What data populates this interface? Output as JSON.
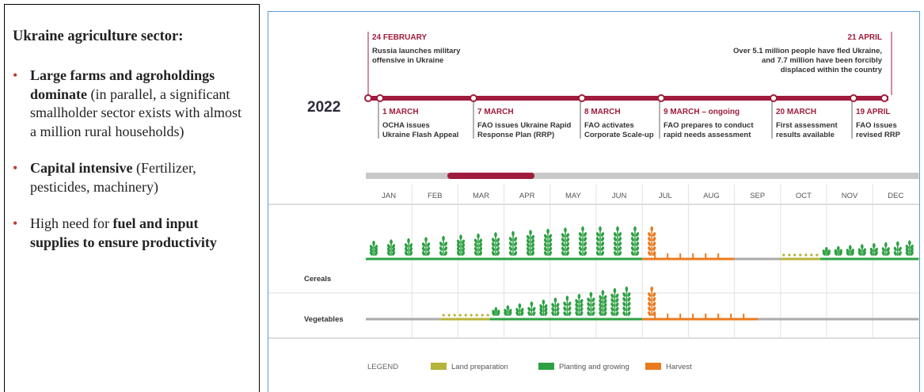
{
  "sidebar": {
    "title": "Ukraine agriculture sector:",
    "bullets": [
      [
        {
          "text": "Large farms and agroholdings dominate",
          "bold": true
        },
        {
          "text": " (in parallel, a significant smallholder sector exists with almost a million rural households)",
          "bold": false
        }
      ],
      [
        {
          "text": "Capital intensive",
          "bold": true
        },
        {
          "text": " (Fertilizer, pesticides, machinery)",
          "bold": false
        }
      ],
      [
        {
          "text": "High need for ",
          "bold": false
        },
        {
          "text": "fuel and input supplies to ensure productivity",
          "bold": true
        }
      ]
    ]
  },
  "timeline": {
    "year": "2022",
    "top_events": [
      {
        "date": "24 FEBRUARY",
        "lines": [
          "Russia launches military",
          "offensive in Ukraine"
        ]
      },
      {
        "date": "21 APRIL",
        "lines": [
          "Over 5.1 million people have fled Ukraine,",
          "and 7.7 million have been forcibly",
          "displaced within the country"
        ]
      }
    ],
    "bottom_events": [
      {
        "date": "1 MARCH",
        "lines": [
          "OCHA issues",
          "Ukraine Flash Appeal"
        ]
      },
      {
        "date": "7 MARCH",
        "lines": [
          "FAO issues Ukraine Rapid",
          "Response Plan (RRP)"
        ]
      },
      {
        "date": "8 MARCH",
        "lines": [
          "FAO activates",
          "Corporate Scale-up"
        ]
      },
      {
        "date": "9 MARCH – ongoing",
        "lines": [
          "FAO prepares to conduct",
          "rapid needs assessment"
        ]
      },
      {
        "date": "20 MARCH",
        "lines": [
          "First assessment",
          "results available"
        ]
      },
      {
        "date": "19 APRIL",
        "lines": [
          "FAO issues",
          "revised RRP"
        ]
      }
    ]
  },
  "calendar": {
    "months": [
      "JAN",
      "FEB",
      "MAR",
      "APR",
      "MAY",
      "JUN",
      "JUL",
      "AUG",
      "SEP",
      "OCT",
      "NOV",
      "DEC"
    ],
    "rows": [
      "Cereals",
      "Vegetables"
    ],
    "legend_title": "LEGEND",
    "legend": [
      {
        "name": "Land preparation",
        "color": "#b5b33a"
      },
      {
        "name": "Planting and growing",
        "color": "#2ea043"
      },
      {
        "name": "Harvest",
        "color": "#ea7a1e"
      }
    ]
  }
}
